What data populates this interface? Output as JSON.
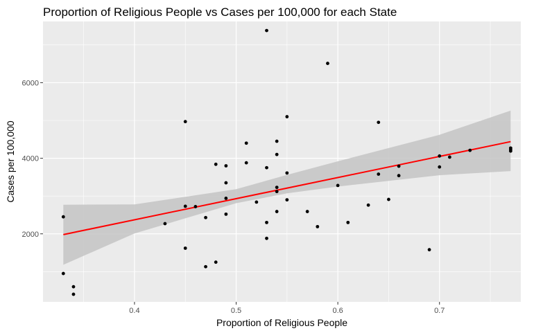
{
  "chart_data": {
    "type": "scatter",
    "title": "Proportion of Religious People vs Cases per 100,000 for each State",
    "xlabel": "Proportion of Religious People",
    "ylabel": "Cases per 100,000",
    "xlim": [
      0.31,
      0.78
    ],
    "ylim": [
      200,
      7620
    ],
    "x_ticks": [
      0.4,
      0.5,
      0.6,
      0.7
    ],
    "x_tick_labels": [
      "0.4",
      "0.5",
      "0.6",
      "0.7"
    ],
    "y_ticks": [
      2000,
      4000,
      6000
    ],
    "y_tick_labels": [
      "2000",
      "4000",
      "6000"
    ],
    "grid": true,
    "points": [
      {
        "x": 0.33,
        "y": 2450
      },
      {
        "x": 0.33,
        "y": 950
      },
      {
        "x": 0.34,
        "y": 600
      },
      {
        "x": 0.34,
        "y": 400
      },
      {
        "x": 0.43,
        "y": 2270
      },
      {
        "x": 0.45,
        "y": 4970
      },
      {
        "x": 0.45,
        "y": 2730
      },
      {
        "x": 0.45,
        "y": 1620
      },
      {
        "x": 0.46,
        "y": 2720
      },
      {
        "x": 0.47,
        "y": 2430
      },
      {
        "x": 0.47,
        "y": 1130
      },
      {
        "x": 0.48,
        "y": 3840
      },
      {
        "x": 0.48,
        "y": 1250
      },
      {
        "x": 0.49,
        "y": 3800
      },
      {
        "x": 0.49,
        "y": 3350
      },
      {
        "x": 0.49,
        "y": 2940
      },
      {
        "x": 0.49,
        "y": 2520
      },
      {
        "x": 0.51,
        "y": 4400
      },
      {
        "x": 0.51,
        "y": 3880
      },
      {
        "x": 0.52,
        "y": 2840
      },
      {
        "x": 0.53,
        "y": 7380
      },
      {
        "x": 0.53,
        "y": 3750
      },
      {
        "x": 0.53,
        "y": 2300
      },
      {
        "x": 0.53,
        "y": 1880
      },
      {
        "x": 0.54,
        "y": 4450
      },
      {
        "x": 0.54,
        "y": 4100
      },
      {
        "x": 0.54,
        "y": 3230
      },
      {
        "x": 0.54,
        "y": 3120
      },
      {
        "x": 0.54,
        "y": 2590
      },
      {
        "x": 0.55,
        "y": 5100
      },
      {
        "x": 0.55,
        "y": 3610
      },
      {
        "x": 0.55,
        "y": 2900
      },
      {
        "x": 0.57,
        "y": 2590
      },
      {
        "x": 0.58,
        "y": 2190
      },
      {
        "x": 0.59,
        "y": 6510
      },
      {
        "x": 0.6,
        "y": 3280
      },
      {
        "x": 0.61,
        "y": 2300
      },
      {
        "x": 0.63,
        "y": 2760
      },
      {
        "x": 0.64,
        "y": 4950
      },
      {
        "x": 0.64,
        "y": 3580
      },
      {
        "x": 0.65,
        "y": 2910
      },
      {
        "x": 0.66,
        "y": 3790
      },
      {
        "x": 0.66,
        "y": 3540
      },
      {
        "x": 0.69,
        "y": 1580
      },
      {
        "x": 0.7,
        "y": 4060
      },
      {
        "x": 0.7,
        "y": 3770
      },
      {
        "x": 0.71,
        "y": 4030
      },
      {
        "x": 0.73,
        "y": 4210
      },
      {
        "x": 0.77,
        "y": 4270
      },
      {
        "x": 0.77,
        "y": 4230
      },
      {
        "x": 0.77,
        "y": 4190
      }
    ],
    "trend_line": {
      "method": "linear",
      "x": [
        0.33,
        0.77
      ],
      "y": [
        1980,
        4440
      ],
      "color": "#ff0000"
    },
    "confidence_band": {
      "x": [
        0.33,
        0.4,
        0.5,
        0.55,
        0.6,
        0.7,
        0.77
      ],
      "lower": [
        1180,
        2010,
        2810,
        3070,
        3250,
        3550,
        3660
      ],
      "upper": [
        2770,
        2780,
        3180,
        3560,
        3920,
        4620,
        5260
      ],
      "color": "#bfbfbf"
    },
    "colors": {
      "panel_background": "#ebebeb",
      "grid": "#ffffff",
      "points": "#000000",
      "trend_line": "#ff0000",
      "band": "#c4c4c4"
    }
  }
}
